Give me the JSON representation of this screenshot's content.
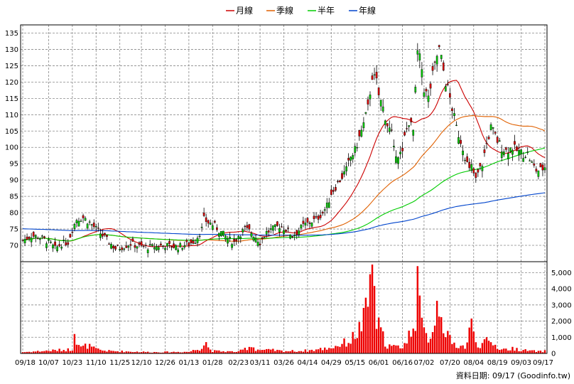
{
  "chart_data": {
    "type": "candlestick_with_volume",
    "legend": [
      {
        "label": "月線",
        "color": "#cc0000"
      },
      {
        "label": "季線",
        "color": "#e06000"
      },
      {
        "label": "半年",
        "color": "#00cc00"
      },
      {
        "label": "年線",
        "color": "#0044cc"
      }
    ],
    "price_axis": {
      "ticks": [
        70,
        75,
        80,
        85,
        90,
        95,
        100,
        105,
        110,
        115,
        120,
        125,
        130,
        135
      ],
      "ylim": [
        65,
        137.5
      ]
    },
    "volume_axis": {
      "ticks": [
        0,
        1000,
        2000,
        3000,
        4000,
        5000
      ],
      "tick_labels": [
        "0",
        "1,000",
        "2,000",
        "3,000",
        "4,000",
        "5,000"
      ],
      "ylim": [
        0,
        5500
      ]
    },
    "x_labels": [
      "09/18",
      "10/07",
      "10/23",
      "11/10",
      "11/25",
      "12/10",
      "12/26",
      "01/13",
      "01/28",
      "02/23",
      "03/11",
      "03/26",
      "04/14",
      "04/29",
      "05/15",
      "06/01",
      "06/16",
      "07/02",
      "07/20",
      "08/04",
      "08/19",
      "09/03",
      "09/17"
    ],
    "x_label_index": [
      0,
      12,
      23,
      34,
      45,
      55,
      66,
      77,
      88,
      100,
      110,
      121,
      132,
      143,
      154,
      165,
      176,
      186,
      198,
      209,
      220,
      231,
      242
    ],
    "n_days": 243,
    "price_anchors": [
      [
        0,
        71.5
      ],
      [
        4,
        73
      ],
      [
        8,
        72.5
      ],
      [
        12,
        71
      ],
      [
        15,
        69
      ],
      [
        18,
        70.5
      ],
      [
        21,
        71
      ],
      [
        23,
        75
      ],
      [
        25,
        78
      ],
      [
        28,
        78.5
      ],
      [
        31,
        77
      ],
      [
        34,
        75
      ],
      [
        37,
        73
      ],
      [
        40,
        71
      ],
      [
        43,
        69
      ],
      [
        46,
        69.5
      ],
      [
        50,
        70.5
      ],
      [
        55,
        69.5
      ],
      [
        60,
        69.5
      ],
      [
        66,
        70
      ],
      [
        72,
        69.5
      ],
      [
        77,
        70.5
      ],
      [
        80,
        71.5
      ],
      [
        83,
        75
      ],
      [
        84,
        78
      ],
      [
        86,
        77
      ],
      [
        89,
        76
      ],
      [
        92,
        74
      ],
      [
        95,
        72
      ],
      [
        98,
        71
      ],
      [
        100,
        73
      ],
      [
        103,
        75
      ],
      [
        106,
        74
      ],
      [
        110,
        71
      ],
      [
        113,
        74
      ],
      [
        116,
        75
      ],
      [
        119,
        76
      ],
      [
        122,
        75
      ],
      [
        125,
        73
      ],
      [
        127,
        74
      ],
      [
        130,
        76
      ],
      [
        133,
        77
      ],
      [
        136,
        78
      ],
      [
        139,
        80
      ],
      [
        141,
        82
      ],
      [
        143,
        86
      ],
      [
        145,
        88
      ],
      [
        147,
        90
      ],
      [
        150,
        93
      ],
      [
        152,
        97
      ],
      [
        154,
        99
      ],
      [
        156,
        103
      ],
      [
        158,
        107
      ],
      [
        160,
        112
      ],
      [
        162,
        122
      ],
      [
        164,
        120
      ],
      [
        165,
        116
      ],
      [
        167,
        112
      ],
      [
        169,
        107
      ],
      [
        171,
        104
      ],
      [
        172,
        99
      ],
      [
        174,
        98
      ],
      [
        176,
        98
      ],
      [
        177,
        103
      ],
      [
        179,
        108
      ],
      [
        181,
        105
      ],
      [
        183,
        129
      ],
      [
        184,
        127
      ],
      [
        185,
        124
      ],
      [
        186,
        118
      ],
      [
        188,
        115
      ],
      [
        190,
        122
      ],
      [
        192,
        128
      ],
      [
        193,
        130
      ],
      [
        194,
        127
      ],
      [
        196,
        120
      ],
      [
        197,
        118
      ],
      [
        199,
        112
      ],
      [
        201,
        106
      ],
      [
        202,
        104
      ],
      [
        204,
        100
      ],
      [
        206,
        95
      ],
      [
        207,
        93
      ],
      [
        208,
        94
      ],
      [
        209,
        92
      ],
      [
        210,
        90
      ],
      [
        211,
        92
      ],
      [
        213,
        95
      ],
      [
        215,
        101
      ],
      [
        217,
        106
      ],
      [
        218,
        105
      ],
      [
        220,
        102
      ],
      [
        222,
        100
      ],
      [
        224,
        99
      ],
      [
        227,
        100
      ],
      [
        229,
        99
      ],
      [
        232,
        98
      ],
      [
        234,
        98
      ],
      [
        236,
        95
      ],
      [
        238,
        93
      ],
      [
        240,
        93
      ],
      [
        242,
        94
      ]
    ],
    "volume_anchors": [
      [
        0,
        80
      ],
      [
        23,
        250
      ],
      [
        24,
        1200
      ],
      [
        25,
        800
      ],
      [
        27,
        350
      ],
      [
        30,
        500
      ],
      [
        33,
        300
      ],
      [
        36,
        200
      ],
      [
        40,
        150
      ],
      [
        60,
        80
      ],
      [
        77,
        100
      ],
      [
        82,
        300
      ],
      [
        84,
        600
      ],
      [
        86,
        350
      ],
      [
        88,
        150
      ],
      [
        100,
        100
      ],
      [
        104,
        350
      ],
      [
        106,
        500
      ],
      [
        108,
        250
      ],
      [
        112,
        200
      ],
      [
        116,
        200
      ],
      [
        120,
        150
      ],
      [
        128,
        150
      ],
      [
        134,
        200
      ],
      [
        140,
        300
      ],
      [
        144,
        400
      ],
      [
        148,
        600
      ],
      [
        152,
        800
      ],
      [
        156,
        1500
      ],
      [
        158,
        2000
      ],
      [
        160,
        3000
      ],
      [
        161,
        4000
      ],
      [
        162,
        5600
      ],
      [
        163,
        3000
      ],
      [
        164,
        2000
      ],
      [
        165,
        1600
      ],
      [
        167,
        1000
      ],
      [
        169,
        500
      ],
      [
        172,
        400
      ],
      [
        175,
        400
      ],
      [
        178,
        700
      ],
      [
        180,
        1500
      ],
      [
        182,
        2500
      ],
      [
        183,
        5400
      ],
      [
        184,
        2500
      ],
      [
        185,
        1800
      ],
      [
        186,
        1200
      ],
      [
        188,
        1000
      ],
      [
        190,
        1500
      ],
      [
        192,
        3000
      ],
      [
        193,
        3200
      ],
      [
        194,
        3300
      ],
      [
        195,
        1800
      ],
      [
        197,
        1000
      ],
      [
        199,
        600
      ],
      [
        202,
        500
      ],
      [
        205,
        400
      ],
      [
        206,
        700
      ],
      [
        207,
        1500
      ],
      [
        208,
        1700
      ],
      [
        209,
        1200
      ],
      [
        210,
        800
      ],
      [
        212,
        500
      ],
      [
        215,
        700
      ],
      [
        218,
        600
      ],
      [
        221,
        300
      ],
      [
        224,
        250
      ],
      [
        228,
        300
      ],
      [
        232,
        200
      ],
      [
        236,
        150
      ],
      [
        240,
        120
      ],
      [
        242,
        150
      ]
    ],
    "spikes": [
      [
        161,
        4900,
        "up"
      ],
      [
        162,
        5600,
        "up"
      ],
      [
        183,
        5400,
        "up"
      ],
      [
        207,
        1600,
        "up"
      ],
      [
        24,
        1200,
        "up"
      ],
      [
        85,
        700,
        "up"
      ]
    ],
    "credit": "資料日期: 09/17  (Goodinfo.tw)"
  }
}
